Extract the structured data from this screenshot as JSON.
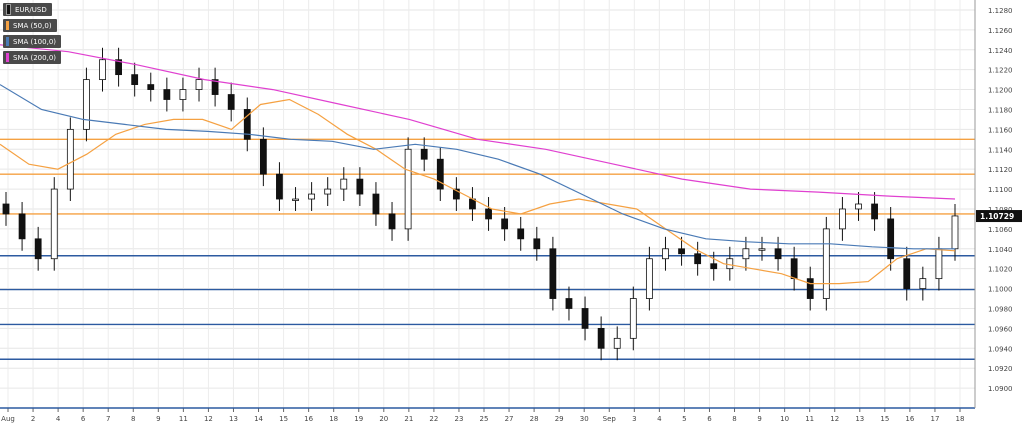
{
  "legend": [
    {
      "label": "EUR/USD",
      "color": "#111111"
    },
    {
      "label": "SMA (50,0)",
      "color": "#f5a142"
    },
    {
      "label": "SMA (100,0)",
      "color": "#4a7ab5"
    },
    {
      "label": "SMA (200,0)",
      "color": "#e040d0"
    }
  ],
  "chart_data": {
    "type": "candlestick",
    "title": "EUR/USD",
    "ylim": [
      1.088,
      1.129
    ],
    "y_ticks": [
      "1.1280",
      "1.1260",
      "1.1240",
      "1.1220",
      "1.1200",
      "1.1180",
      "1.1160",
      "1.1140",
      "1.1120",
      "1.1100",
      "1.1080",
      "1.1060",
      "1.1040",
      "1.1020",
      "1.1000",
      "1.0980",
      "1.0960",
      "1.0940",
      "1.0920",
      "1.0900"
    ],
    "x_ticks": [
      "Aug",
      "2",
      "4",
      "6",
      "7",
      "8",
      "9",
      "11",
      "12",
      "13",
      "14",
      "15",
      "16",
      "18",
      "19",
      "20",
      "21",
      "22",
      "23",
      "25",
      "27",
      "28",
      "29",
      "30",
      "Sep",
      "3",
      "4",
      "5",
      "6",
      "8",
      "9",
      "10",
      "11",
      "12",
      "13",
      "15",
      "16",
      "17",
      "18"
    ],
    "current_price": "1.10729",
    "horizontal_levels": [
      {
        "value": 1.115,
        "color": "#f5a142"
      },
      {
        "value": 1.1115,
        "color": "#f5a142"
      },
      {
        "value": 1.1075,
        "color": "#f5a142"
      },
      {
        "value": 1.1033,
        "color": "#2c5aa0"
      },
      {
        "value": 1.0999,
        "color": "#2c5aa0"
      },
      {
        "value": 1.0964,
        "color": "#2c5aa0"
      },
      {
        "value": 1.0929,
        "color": "#2c5aa0"
      }
    ],
    "series": [
      {
        "name": "SMA (50,0)",
        "color": "#f5a142",
        "values": [
          1.1145,
          1.1125,
          1.112,
          1.1135,
          1.1155,
          1.1165,
          1.117,
          1.117,
          1.116,
          1.1185,
          1.119,
          1.1175,
          1.1155,
          1.114,
          1.112,
          1.111,
          1.1095,
          1.108,
          1.1075,
          1.1085,
          1.109,
          1.1085,
          1.108,
          1.106,
          1.104,
          1.1025,
          1.102,
          1.1015,
          1.1005,
          1.1005,
          1.1007,
          1.103,
          1.104,
          1.1038
        ]
      },
      {
        "name": "SMA (100,0)",
        "color": "#4a7ab5",
        "values": [
          1.1205,
          1.118,
          1.117,
          1.1165,
          1.116,
          1.1158,
          1.1155,
          1.115,
          1.1148,
          1.114,
          1.1145,
          1.114,
          1.113,
          1.1115,
          1.1095,
          1.1075,
          1.106,
          1.105,
          1.1047,
          1.1045,
          1.1045,
          1.1042,
          1.104,
          1.104
        ]
      },
      {
        "name": "SMA (200,0)",
        "color": "#e040d0",
        "values": [
          1.1245,
          1.1238,
          1.1225,
          1.121,
          1.12,
          1.1185,
          1.117,
          1.115,
          1.114,
          1.1125,
          1.111,
          1.11,
          1.1097,
          1.1093,
          1.109
        ]
      },
      {
        "name": "EUR/USD",
        "color": "#111111",
        "values": [
          1.1075,
          1.105,
          1.103,
          1.11,
          1.116,
          1.121,
          1.123,
          1.1215,
          1.1205,
          1.12,
          1.119,
          1.12,
          1.121,
          1.1195,
          1.118,
          1.115,
          1.1115,
          1.109,
          1.109,
          1.1095,
          1.11,
          1.111,
          1.1095,
          1.1075,
          1.106,
          1.114,
          1.113,
          1.11,
          1.109,
          1.108,
          1.107,
          1.106,
          1.105,
          1.104,
          1.099,
          1.098,
          1.096,
          1.094,
          1.095,
          1.099,
          1.103,
          1.104,
          1.1035,
          1.1025,
          1.102,
          1.103,
          1.104,
          1.104,
          1.103,
          1.101,
          1.099,
          1.106,
          1.108,
          1.1085,
          1.107,
          1.103,
          1.1,
          1.101,
          1.104,
          1.1073
        ]
      }
    ]
  }
}
